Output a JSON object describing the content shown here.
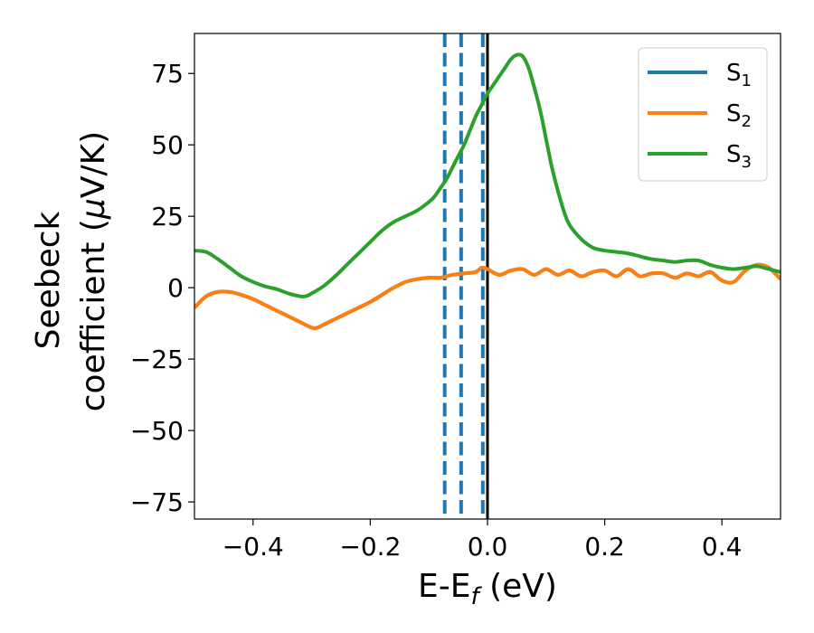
{
  "chart_data": {
    "type": "line",
    "xlabel": {
      "main": "E-E",
      "sub": "f",
      "unit": " (eV)"
    },
    "ylabel": {
      "line1": "Seebeck",
      "line2": "coefficient  (",
      "mu": "μ",
      "line2_end": "V/K)"
    },
    "xlim": [
      -0.5,
      0.5
    ],
    "ylim": [
      -81,
      89
    ],
    "x_ticks": [
      -0.4,
      -0.2,
      0.0,
      0.2,
      0.4
    ],
    "x_tick_labels": [
      "−0.4",
      "−0.2",
      "0.0",
      "0.2",
      "0.4"
    ],
    "y_ticks": [
      -75,
      -50,
      -25,
      0,
      25,
      50,
      75
    ],
    "y_tick_labels": [
      "−75",
      "−50",
      "−25",
      "0",
      "25",
      "50",
      "75"
    ],
    "grid": false,
    "legend_position": "top-right",
    "vertical_lines": [
      {
        "x": -0.073,
        "style": "dashed",
        "color": "#1f77b4"
      },
      {
        "x": -0.045,
        "style": "dashed",
        "color": "#1f77b4"
      },
      {
        "x": -0.008,
        "style": "dashed",
        "color": "#1f77b4"
      },
      {
        "x": 0.0,
        "style": "solid",
        "color": "#000000"
      }
    ],
    "series": [
      {
        "name": "S",
        "sub": "1",
        "color": "#1f77b4",
        "x": [
          -0.5,
          -0.48,
          -0.46,
          -0.44,
          -0.42,
          -0.4,
          -0.38,
          -0.36,
          -0.34,
          -0.32,
          -0.3,
          -0.29,
          -0.28,
          -0.26,
          -0.24,
          -0.22,
          -0.2,
          -0.18,
          -0.16,
          -0.14,
          -0.12,
          -0.1,
          -0.08,
          -0.06,
          -0.04,
          -0.02,
          -0.01,
          0.0,
          0.02,
          0.04,
          0.06,
          0.08,
          0.1,
          0.12,
          0.14,
          0.16,
          0.18,
          0.2,
          0.22,
          0.24,
          0.26,
          0.28,
          0.3,
          0.32,
          0.34,
          0.36,
          0.38,
          0.4,
          0.42,
          0.44,
          0.46,
          0.48,
          0.5
        ],
        "y": [
          -7,
          -3,
          -1.5,
          -1.5,
          -2.5,
          -4,
          -6,
          -8,
          -10,
          -12,
          -14,
          -14,
          -13,
          -11,
          -9,
          -7,
          -5,
          -2.5,
          0,
          2,
          3,
          3.5,
          3.5,
          4.5,
          5,
          5.5,
          7,
          6.5,
          4.5,
          6,
          6.5,
          4.5,
          6.5,
          4.5,
          6,
          4,
          5.5,
          6,
          4,
          6.5,
          4,
          5,
          5,
          3.5,
          5,
          4,
          5.5,
          2.5,
          2,
          6,
          8,
          7,
          3
        ]
      },
      {
        "name": "S",
        "sub": "2",
        "color": "#ff7f0e",
        "x": [
          -0.5,
          -0.48,
          -0.46,
          -0.44,
          -0.42,
          -0.4,
          -0.38,
          -0.36,
          -0.34,
          -0.32,
          -0.3,
          -0.29,
          -0.28,
          -0.26,
          -0.24,
          -0.22,
          -0.2,
          -0.18,
          -0.16,
          -0.14,
          -0.12,
          -0.1,
          -0.08,
          -0.06,
          -0.04,
          -0.02,
          -0.01,
          0.0,
          0.02,
          0.04,
          0.06,
          0.08,
          0.1,
          0.12,
          0.14,
          0.16,
          0.18,
          0.2,
          0.22,
          0.24,
          0.26,
          0.28,
          0.3,
          0.32,
          0.34,
          0.36,
          0.38,
          0.4,
          0.42,
          0.44,
          0.46,
          0.48,
          0.5
        ],
        "y": [
          -7,
          -3,
          -1.5,
          -1.5,
          -2.5,
          -4,
          -6,
          -8,
          -10,
          -12,
          -14,
          -14,
          -13,
          -11,
          -9,
          -7,
          -5,
          -2.5,
          0,
          2,
          3,
          3.5,
          3.5,
          4.5,
          5,
          5.5,
          7,
          6.5,
          4.5,
          6,
          6.5,
          4.5,
          6.5,
          4.5,
          6,
          4,
          5.5,
          6,
          4,
          6.5,
          4,
          5,
          5,
          3.5,
          5,
          4,
          5.5,
          2.5,
          2,
          6,
          8,
          7,
          3
        ]
      },
      {
        "name": "S",
        "sub": "3",
        "color": "#2ca02c",
        "x": [
          -0.5,
          -0.48,
          -0.46,
          -0.44,
          -0.42,
          -0.4,
          -0.38,
          -0.36,
          -0.34,
          -0.32,
          -0.31,
          -0.3,
          -0.28,
          -0.26,
          -0.24,
          -0.22,
          -0.2,
          -0.18,
          -0.16,
          -0.14,
          -0.12,
          -0.1,
          -0.09,
          -0.08,
          -0.07,
          -0.06,
          -0.05,
          -0.04,
          -0.03,
          -0.02,
          -0.01,
          0.0,
          0.01,
          0.02,
          0.03,
          0.04,
          0.05,
          0.06,
          0.07,
          0.08,
          0.09,
          0.1,
          0.11,
          0.12,
          0.13,
          0.14,
          0.16,
          0.18,
          0.2,
          0.22,
          0.24,
          0.26,
          0.28,
          0.3,
          0.32,
          0.34,
          0.36,
          0.38,
          0.4,
          0.42,
          0.44,
          0.46,
          0.48,
          0.5
        ],
        "y": [
          13,
          12.5,
          10,
          7,
          4,
          2,
          0.5,
          -0.5,
          -2,
          -3,
          -3,
          -2,
          0.5,
          4,
          8,
          12,
          16,
          20,
          23,
          25,
          27,
          30,
          32,
          35,
          38,
          42,
          46,
          50,
          55,
          60,
          64,
          68,
          71,
          74,
          77,
          80,
          81.5,
          81,
          77,
          70,
          62,
          52,
          42,
          34,
          27,
          22,
          17,
          14,
          13,
          12.5,
          12,
          11,
          10,
          9.5,
          9,
          9.5,
          9.5,
          8,
          7,
          6.5,
          7,
          7.5,
          6.5,
          5.5
        ]
      }
    ]
  }
}
